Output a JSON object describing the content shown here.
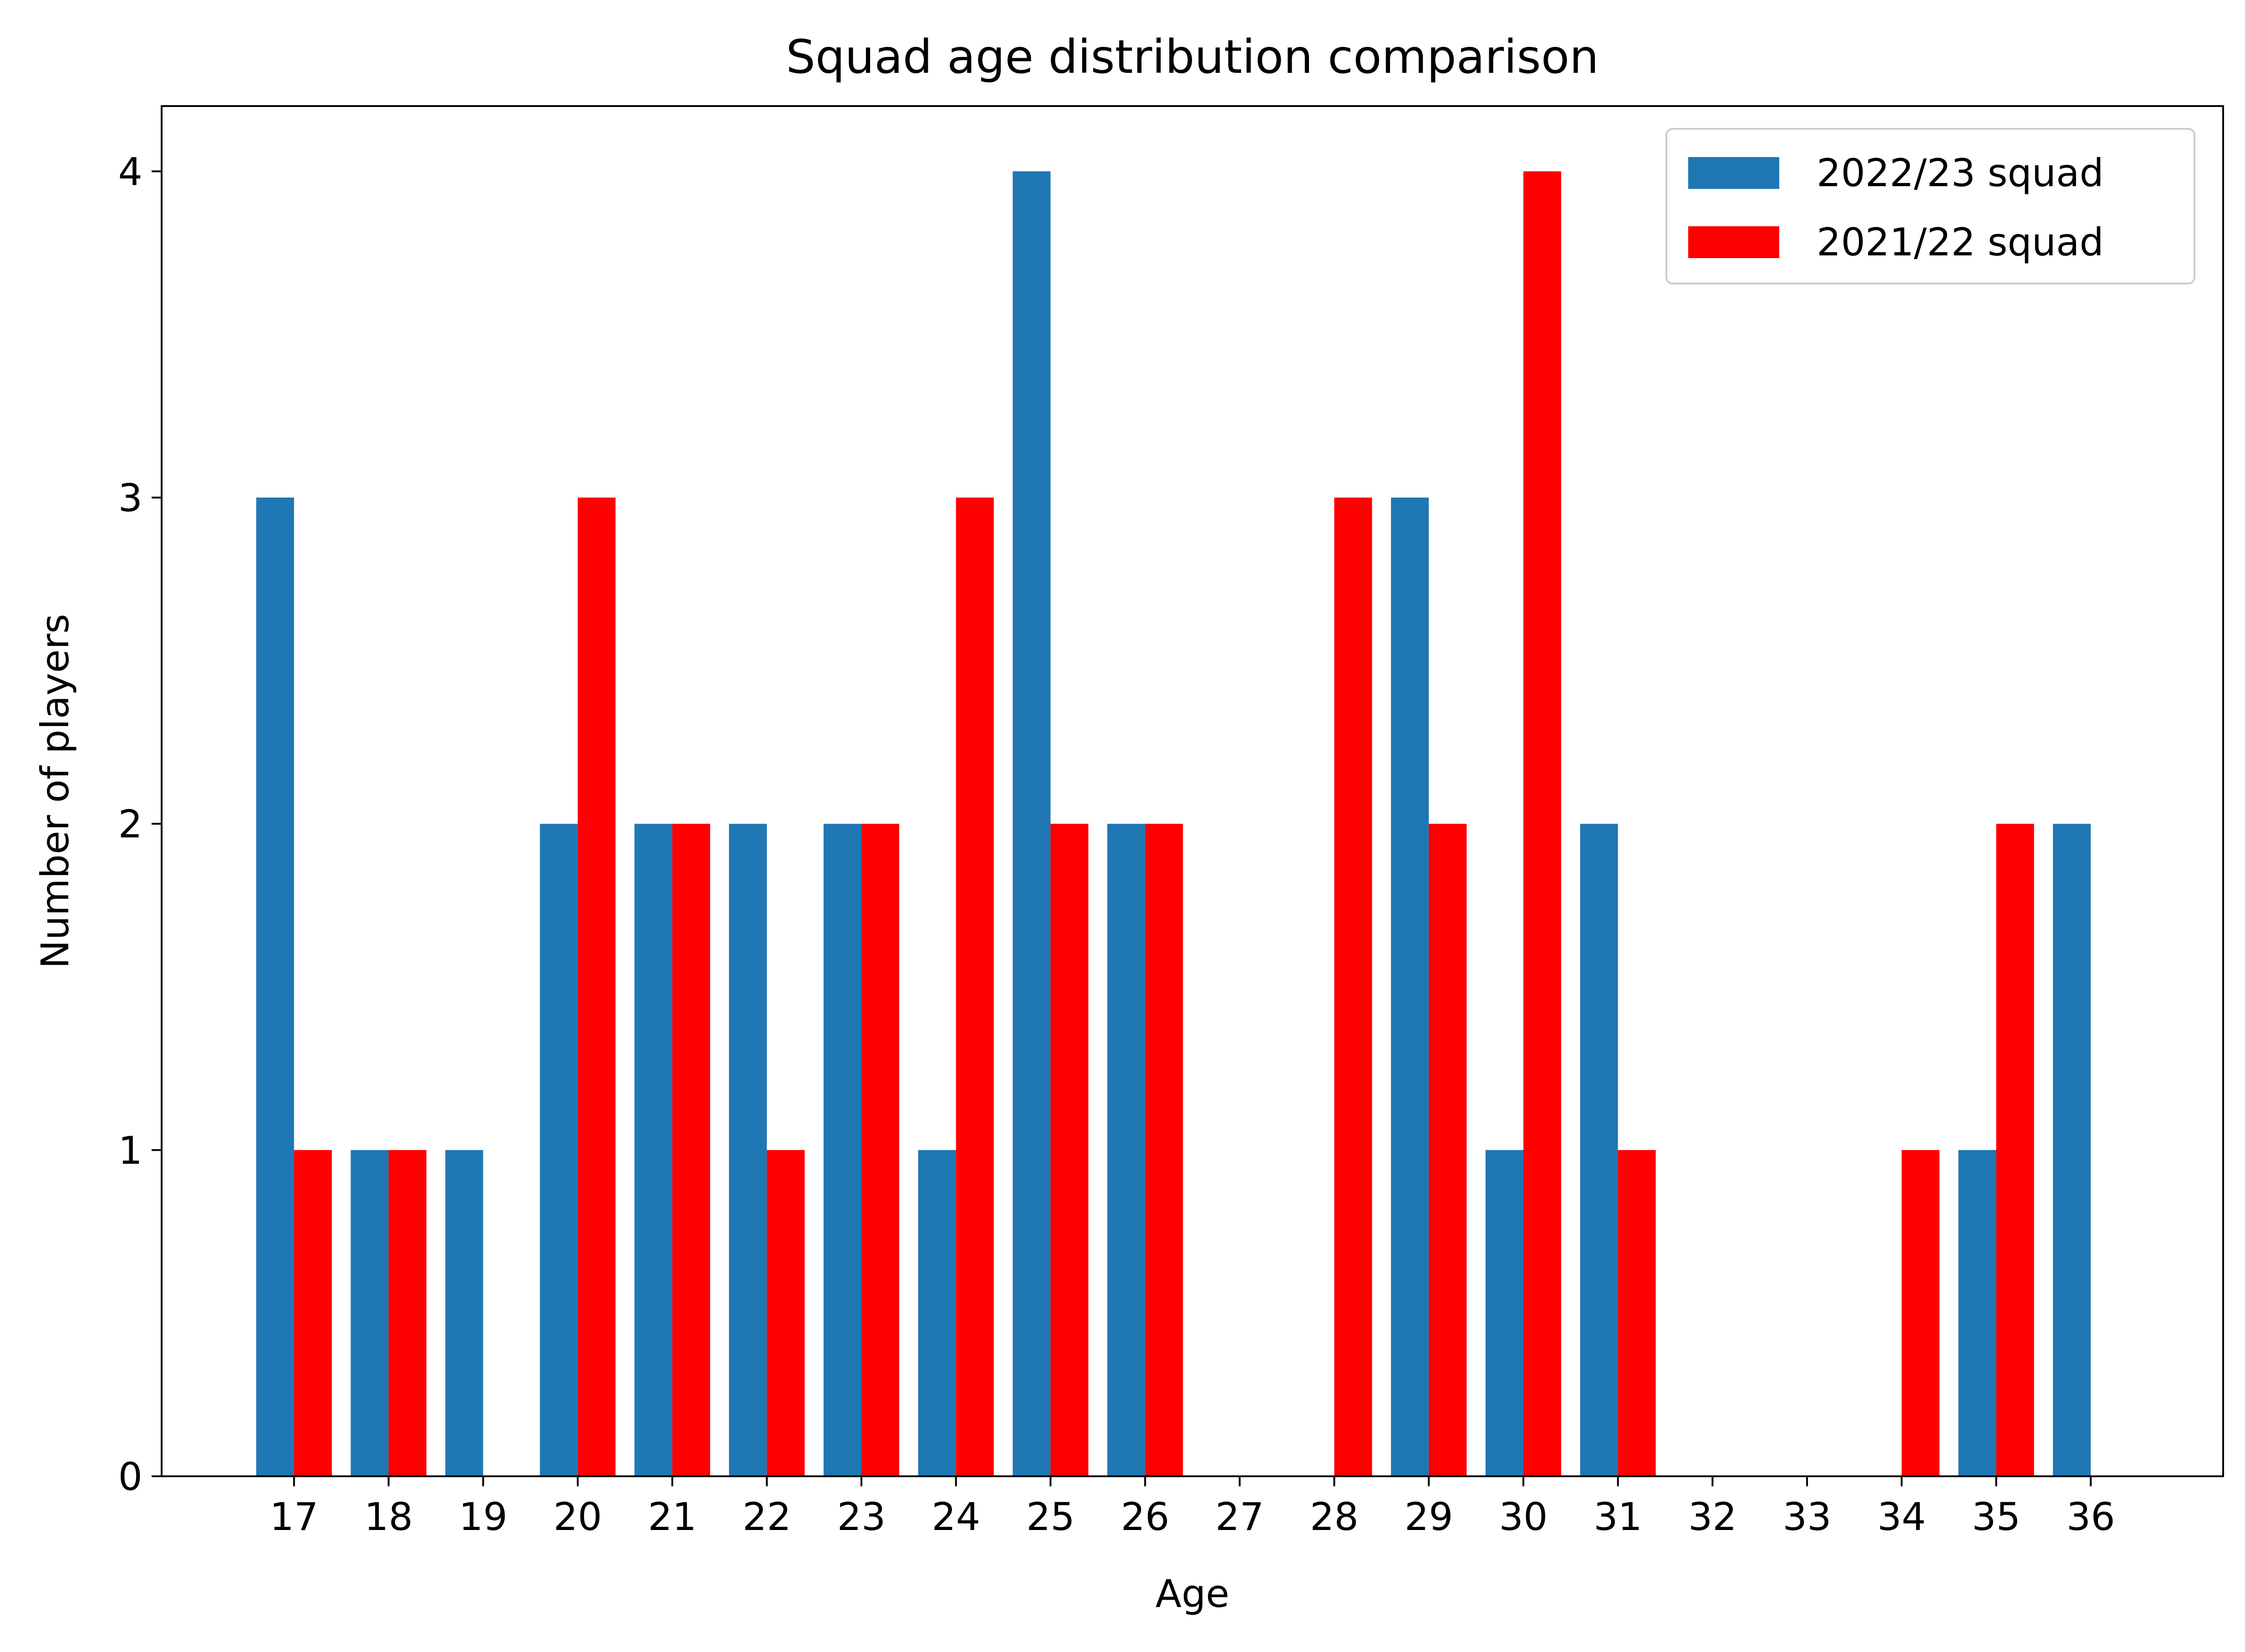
{
  "chart_data": {
    "type": "bar",
    "title": "Squad age distribution comparison",
    "xlabel": "Age",
    "ylabel": "Number of players",
    "categories": [
      "17",
      "18",
      "19",
      "20",
      "21",
      "22",
      "23",
      "24",
      "25",
      "26",
      "27",
      "28",
      "29",
      "30",
      "31",
      "32",
      "33",
      "34",
      "35",
      "36"
    ],
    "series": [
      {
        "name": "2022/23 squad",
        "color": "#1f77b4",
        "values": [
          3,
          1,
          1,
          2,
          2,
          2,
          2,
          1,
          4,
          2,
          0,
          0,
          3,
          1,
          2,
          0,
          0,
          0,
          1,
          2
        ]
      },
      {
        "name": "2021/22 squad",
        "color": "#ff0000",
        "values": [
          1,
          1,
          0,
          3,
          2,
          1,
          2,
          3,
          2,
          2,
          0,
          3,
          2,
          4,
          1,
          0,
          0,
          1,
          2,
          0
        ]
      }
    ],
    "ylim": [
      0,
      4.2
    ],
    "yticks": [
      0,
      1,
      2,
      3,
      4
    ],
    "grid": false,
    "legend": "top-right"
  }
}
